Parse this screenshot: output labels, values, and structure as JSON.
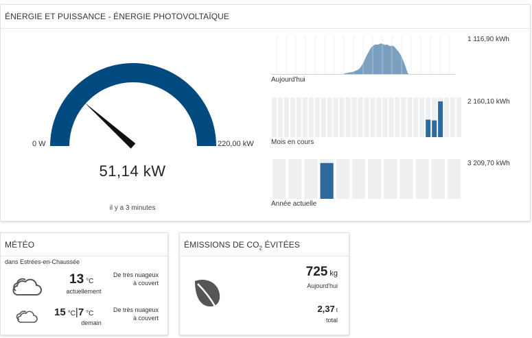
{
  "energy": {
    "title": "ÉNERGIE ET PUISSANCE - ÉNERGIE PHOTOVOLTAÏQUE",
    "gauge": {
      "min_label": "0 W",
      "max_label": "220,00 kW",
      "value_label": "51,14 kW",
      "value": 51.14,
      "max": 220,
      "updated": "il y a 3 minutes",
      "color": "#004a7f"
    },
    "today": {
      "label": "Aujourd'hui",
      "total": "1 116,90 kWh",
      "color": "#7a9fbf",
      "values": [
        0,
        0,
        0,
        0,
        0,
        0,
        0,
        0,
        0,
        0,
        0,
        0,
        0,
        0,
        0,
        0,
        0,
        0,
        0,
        0,
        0,
        0,
        0,
        0,
        0,
        0,
        0,
        0,
        0,
        0,
        0,
        0,
        0,
        0,
        0,
        0,
        0,
        0,
        0.02,
        0.04,
        0.05,
        0.06,
        0.07,
        0.08,
        0.1,
        0.12,
        0.15,
        0.2,
        0.28,
        0.38,
        0.5,
        0.6,
        0.7,
        0.78,
        0.82,
        0.85,
        0.84,
        0.86,
        0.88,
        0.86,
        0.83,
        0.85,
        0.82,
        0.8,
        0.82,
        0.78,
        0.72,
        0.66,
        0.58,
        0.48,
        0.35,
        0.2,
        0.05,
        0,
        0,
        0,
        0,
        0,
        0,
        0,
        0,
        0,
        0,
        0,
        0,
        0,
        0,
        0,
        0,
        0,
        0,
        0,
        0,
        0,
        0,
        0,
        0,
        0
      ]
    },
    "month": {
      "label": "Mois en cours",
      "total": "2 160,10 kWh",
      "color": "#2e6a9e",
      "values": [
        0,
        0,
        0,
        0,
        0,
        0,
        0,
        0,
        0,
        0,
        0,
        0,
        0,
        0,
        0,
        0,
        0,
        0,
        0,
        0,
        0,
        0,
        0,
        0,
        0,
        0.44,
        0.42,
        0.9,
        0,
        0,
        0
      ]
    },
    "year": {
      "label": "Année actuelle",
      "total": "3 209,70 kWh",
      "color": "#2e6a9e",
      "values": [
        0,
        0,
        0,
        0.9,
        0,
        0,
        0,
        0,
        0,
        0,
        0,
        0
      ]
    }
  },
  "meteo": {
    "title": "MÉTÉO",
    "location": "dans Estrées-en-Chaussée",
    "current": {
      "temp": "13",
      "unit": "°C",
      "sub": "actuellement",
      "desc_line1": "De très nuageux",
      "desc_line2": "à couvert",
      "icon": "cloud-icon"
    },
    "tomorrow": {
      "min": "15",
      "unit": "°C",
      "sep": "|",
      "max": "7",
      "sub": "demain",
      "desc_line1": "De très nuageux",
      "desc_line2": "à couvert",
      "icon": "cloud-icon"
    }
  },
  "co2": {
    "title_main": "ÉMISSIONS DE CO",
    "title_sub": "2",
    "title_end": " ÉVITÉES",
    "today_value": "725",
    "today_unit": "kg",
    "today_label": "Aujourd'hui",
    "total_value": "2,37",
    "total_unit": "t",
    "total_label": "total",
    "icon": "leaf-icon"
  }
}
